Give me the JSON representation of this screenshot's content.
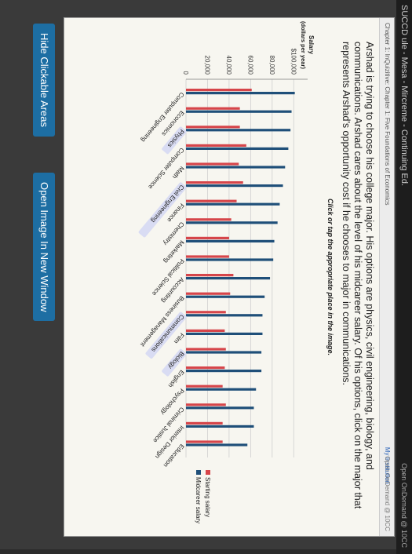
{
  "topbar": {
    "brand": "SUCCD ule - Mesa - Mircreme - Continuing Ed.",
    "right": "Open OnDemand @ 10CC"
  },
  "panel": {
    "breadcrumb": "Chapter 1: InQuizitive: Chapter 1: Five Foundations of Economics",
    "institution": "My Institution",
    "open_on_demand": "Open OnDemand @ 10CC"
  },
  "question": "Arshad is trying to choose his college major. His options are physics, civil engineering, biology, and communications. Arshad cares about the level of his midcareer salary. Of his options, click on the major that represents Arshad's opportunity cost if he chooses to major in communications.",
  "instruction": "Click or tap the appropriate place in the image.",
  "buttons": {
    "hide": "Hide Clickable Areas",
    "open": "Open Image In New Window"
  },
  "chart_data": {
    "type": "bar",
    "title": "",
    "ylabel": "Salary\n(dollars per year)",
    "ylim": [
      0,
      110000
    ],
    "yticks": [
      "0",
      "20,000",
      "40,000",
      "60,000",
      "80,000",
      "$100,000"
    ],
    "categories": [
      "Computer Engineering",
      "Economics",
      "Physics",
      "Computer Science",
      "Math",
      "Civil Engineering",
      "Finance",
      "Chemistry",
      "Marketing",
      "Political Science",
      "Accounting",
      "Business Management",
      "Communications",
      "Film",
      "Biology",
      "English",
      "Psychology",
      "Criminal Justice",
      "Interior Design",
      "Education"
    ],
    "highlighted": [
      "Physics",
      "Civil Engineering",
      "Communications",
      "Biology"
    ],
    "series": [
      {
        "name": "Starting salary",
        "color": "#d6454a",
        "values": [
          61000,
          50000,
          50000,
          56000,
          49000,
          53000,
          47000,
          42000,
          40000,
          40000,
          44000,
          41000,
          37000,
          36000,
          37000,
          36000,
          34000,
          37000,
          34000,
          34000
        ]
      },
      {
        "name": "Midcareer salary",
        "color": "#1f4f79",
        "values": [
          101000,
          98000,
          97000,
          95000,
          92000,
          90000,
          87000,
          85000,
          82000,
          81000,
          78000,
          73000,
          71000,
          71000,
          70000,
          70000,
          65000,
          63000,
          63000,
          57000
        ]
      }
    ],
    "legend": "right"
  }
}
